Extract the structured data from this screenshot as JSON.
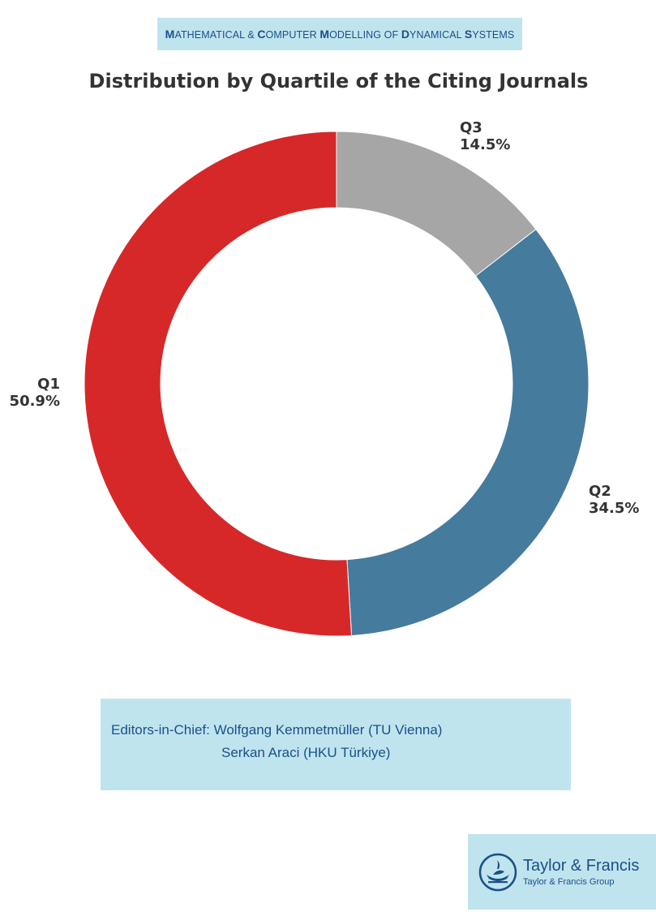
{
  "header": {
    "journal_parts": [
      {
        "cap": "M",
        "rest": "ATHEMATICAL "
      },
      {
        "cap": "",
        "rest": "& "
      },
      {
        "cap": "C",
        "rest": "OMPUTER "
      },
      {
        "cap": "M",
        "rest": "ODELLING OF "
      },
      {
        "cap": "D",
        "rest": "YNAMICAL "
      },
      {
        "cap": "S",
        "rest": "YSTEMS"
      }
    ]
  },
  "chart_data": {
    "type": "pie",
    "style": "donut",
    "title": "Distribution by Quartile of the Citing Journals",
    "start": "top",
    "direction": "clockwise",
    "slices": [
      {
        "label": "Q3",
        "value": 14.5,
        "display": "14.5%",
        "color": "#a6a6a6"
      },
      {
        "label": "Q2",
        "value": 34.5,
        "display": "34.5%",
        "color": "#457b9d"
      },
      {
        "label": "Q1",
        "value": 50.9,
        "display": "50.9%",
        "color": "#d62828"
      }
    ]
  },
  "editors": {
    "line1": "Editors-in-Chief: Wolfgang Kemmetmüller (TU Vienna)",
    "line2": "Serkan Araci (HKU Türkiye)"
  },
  "publisher": {
    "name": "Taylor & Francis",
    "group": "Taylor & Francis Group",
    "logo_icon": "lamp-logo-icon"
  }
}
